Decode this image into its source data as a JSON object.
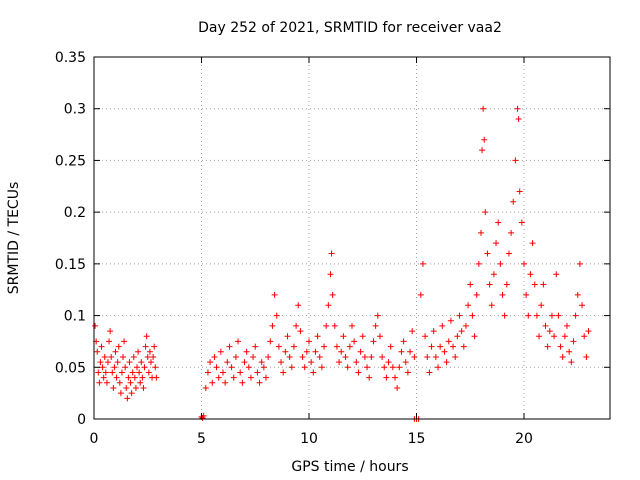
{
  "chart_data": {
    "type": "scatter",
    "title": "Day 252 of 2021, SRMTID for receiver vaa2",
    "xlabel": "GPS time / hours",
    "ylabel": "SRMTID / TECUs",
    "xlim": [
      0,
      24
    ],
    "ylim": [
      0,
      0.35
    ],
    "x_ticks": [
      0,
      5,
      10,
      15,
      20
    ],
    "x_tick_labels": [
      "0",
      "5",
      "10",
      "15",
      "20"
    ],
    "y_ticks": [
      0,
      0.05,
      0.1,
      0.15,
      0.2,
      0.25,
      0.3,
      0.35
    ],
    "y_tick_labels": [
      "0",
      "0.05",
      "0.1",
      "0.15",
      "0.2",
      "0.25",
      "0.3",
      "0.35"
    ],
    "grid": true,
    "marker": "plus",
    "color": "#ff0000",
    "series": [
      {
        "name": "vaa2",
        "points": [
          [
            0.05,
            0.09
          ],
          [
            0.1,
            0.075
          ],
          [
            0.15,
            0.065
          ],
          [
            0.2,
            0.045
          ],
          [
            0.25,
            0.035
          ],
          [
            0.3,
            0.055
          ],
          [
            0.35,
            0.07
          ],
          [
            0.4,
            0.05
          ],
          [
            0.45,
            0.04
          ],
          [
            0.5,
            0.06
          ],
          [
            0.55,
            0.045
          ],
          [
            0.6,
            0.035
          ],
          [
            0.65,
            0.055
          ],
          [
            0.7,
            0.075
          ],
          [
            0.75,
            0.085
          ],
          [
            0.8,
            0.06
          ],
          [
            0.85,
            0.045
          ],
          [
            0.9,
            0.03
          ],
          [
            0.95,
            0.05
          ],
          [
            1.0,
            0.065
          ],
          [
            1.05,
            0.04
          ],
          [
            1.1,
            0.055
          ],
          [
            1.15,
            0.07
          ],
          [
            1.2,
            0.035
          ],
          [
            1.25,
            0.025
          ],
          [
            1.3,
            0.045
          ],
          [
            1.35,
            0.06
          ],
          [
            1.4,
            0.075
          ],
          [
            1.45,
            0.05
          ],
          [
            1.5,
            0.03
          ],
          [
            1.55,
            0.02
          ],
          [
            1.6,
            0.04
          ],
          [
            1.65,
            0.055
          ],
          [
            1.7,
            0.035
          ],
          [
            1.75,
            0.025
          ],
          [
            1.8,
            0.045
          ],
          [
            1.85,
            0.06
          ],
          [
            1.9,
            0.04
          ],
          [
            1.95,
            0.03
          ],
          [
            2.0,
            0.05
          ],
          [
            2.05,
            0.065
          ],
          [
            2.1,
            0.045
          ],
          [
            2.15,
            0.035
          ],
          [
            2.2,
            0.055
          ],
          [
            2.25,
            0.04
          ],
          [
            2.3,
            0.03
          ],
          [
            2.35,
            0.05
          ],
          [
            2.4,
            0.07
          ],
          [
            2.45,
            0.08
          ],
          [
            2.5,
            0.06
          ],
          [
            2.55,
            0.045
          ],
          [
            2.6,
            0.065
          ],
          [
            2.65,
            0.055
          ],
          [
            2.7,
            0.04
          ],
          [
            2.75,
            0.06
          ],
          [
            2.8,
            0.07
          ],
          [
            2.85,
            0.05
          ],
          [
            2.9,
            0.04
          ],
          [
            5.0,
            0.002
          ],
          [
            5.05,
            0.001
          ],
          [
            5.1,
            0.003
          ],
          [
            5.2,
            0.03
          ],
          [
            5.3,
            0.045
          ],
          [
            5.4,
            0.055
          ],
          [
            5.5,
            0.035
          ],
          [
            5.6,
            0.06
          ],
          [
            5.7,
            0.05
          ],
          [
            5.8,
            0.04
          ],
          [
            5.9,
            0.065
          ],
          [
            6.0,
            0.045
          ],
          [
            6.1,
            0.035
          ],
          [
            6.2,
            0.055
          ],
          [
            6.3,
            0.07
          ],
          [
            6.4,
            0.05
          ],
          [
            6.5,
            0.04
          ],
          [
            6.6,
            0.06
          ],
          [
            6.7,
            0.075
          ],
          [
            6.8,
            0.045
          ],
          [
            6.9,
            0.035
          ],
          [
            7.0,
            0.055
          ],
          [
            7.1,
            0.065
          ],
          [
            7.2,
            0.05
          ],
          [
            7.3,
            0.04
          ],
          [
            7.4,
            0.06
          ],
          [
            7.5,
            0.07
          ],
          [
            7.6,
            0.045
          ],
          [
            7.7,
            0.035
          ],
          [
            7.8,
            0.055
          ],
          [
            7.9,
            0.05
          ],
          [
            8.0,
            0.04
          ],
          [
            8.1,
            0.06
          ],
          [
            8.2,
            0.075
          ],
          [
            8.3,
            0.09
          ],
          [
            8.4,
            0.12
          ],
          [
            8.5,
            0.1
          ],
          [
            8.6,
            0.07
          ],
          [
            8.7,
            0.055
          ],
          [
            8.8,
            0.045
          ],
          [
            8.9,
            0.065
          ],
          [
            9.0,
            0.08
          ],
          [
            9.1,
            0.06
          ],
          [
            9.2,
            0.05
          ],
          [
            9.3,
            0.07
          ],
          [
            9.4,
            0.09
          ],
          [
            9.5,
            0.11
          ],
          [
            9.6,
            0.085
          ],
          [
            9.7,
            0.06
          ],
          [
            9.8,
            0.05
          ],
          [
            9.9,
            0.065
          ],
          [
            10.0,
            0.075
          ],
          [
            10.1,
            0.055
          ],
          [
            10.2,
            0.045
          ],
          [
            10.3,
            0.065
          ],
          [
            10.4,
            0.08
          ],
          [
            10.5,
            0.06
          ],
          [
            10.6,
            0.05
          ],
          [
            10.7,
            0.07
          ],
          [
            10.8,
            0.09
          ],
          [
            10.9,
            0.11
          ],
          [
            11.0,
            0.14
          ],
          [
            11.05,
            0.16
          ],
          [
            11.1,
            0.12
          ],
          [
            11.2,
            0.09
          ],
          [
            11.3,
            0.07
          ],
          [
            11.4,
            0.055
          ],
          [
            11.5,
            0.065
          ],
          [
            11.6,
            0.08
          ],
          [
            11.7,
            0.06
          ],
          [
            11.8,
            0.05
          ],
          [
            11.9,
            0.07
          ],
          [
            12.0,
            0.09
          ],
          [
            12.1,
            0.075
          ],
          [
            12.2,
            0.055
          ],
          [
            12.3,
            0.045
          ],
          [
            12.4,
            0.065
          ],
          [
            12.5,
            0.08
          ],
          [
            12.6,
            0.06
          ],
          [
            12.7,
            0.05
          ],
          [
            12.8,
            0.04
          ],
          [
            12.9,
            0.06
          ],
          [
            13.0,
            0.075
          ],
          [
            13.1,
            0.09
          ],
          [
            13.2,
            0.1
          ],
          [
            13.3,
            0.08
          ],
          [
            13.4,
            0.06
          ],
          [
            13.5,
            0.05
          ],
          [
            13.6,
            0.04
          ],
          [
            13.7,
            0.055
          ],
          [
            13.8,
            0.07
          ],
          [
            13.9,
            0.05
          ],
          [
            14.0,
            0.04
          ],
          [
            14.1,
            0.03
          ],
          [
            14.2,
            0.05
          ],
          [
            14.3,
            0.065
          ],
          [
            14.4,
            0.075
          ],
          [
            14.5,
            0.055
          ],
          [
            14.6,
            0.045
          ],
          [
            14.7,
            0.065
          ],
          [
            14.8,
            0.085
          ],
          [
            14.9,
            0.06
          ],
          [
            14.9,
            0.0
          ],
          [
            15.0,
            0.0
          ],
          [
            15.1,
            0.0
          ],
          [
            15.2,
            0.12
          ],
          [
            15.3,
            0.15
          ],
          [
            15.4,
            0.08
          ],
          [
            15.5,
            0.06
          ],
          [
            15.6,
            0.045
          ],
          [
            15.7,
            0.07
          ],
          [
            15.8,
            0.085
          ],
          [
            15.9,
            0.06
          ],
          [
            16.0,
            0.05
          ],
          [
            16.1,
            0.07
          ],
          [
            16.2,
            0.09
          ],
          [
            16.3,
            0.065
          ],
          [
            16.4,
            0.055
          ],
          [
            16.5,
            0.075
          ],
          [
            16.6,
            0.095
          ],
          [
            16.7,
            0.07
          ],
          [
            16.8,
            0.06
          ],
          [
            16.9,
            0.08
          ],
          [
            17.0,
            0.1
          ],
          [
            17.1,
            0.085
          ],
          [
            17.2,
            0.07
          ],
          [
            17.3,
            0.09
          ],
          [
            17.4,
            0.11
          ],
          [
            17.5,
            0.13
          ],
          [
            17.6,
            0.1
          ],
          [
            17.7,
            0.08
          ],
          [
            17.8,
            0.12
          ],
          [
            17.9,
            0.15
          ],
          [
            18.0,
            0.18
          ],
          [
            18.05,
            0.26
          ],
          [
            18.1,
            0.3
          ],
          [
            18.15,
            0.27
          ],
          [
            18.2,
            0.2
          ],
          [
            18.3,
            0.16
          ],
          [
            18.4,
            0.13
          ],
          [
            18.5,
            0.11
          ],
          [
            18.6,
            0.14
          ],
          [
            18.7,
            0.17
          ],
          [
            18.8,
            0.19
          ],
          [
            18.9,
            0.15
          ],
          [
            19.0,
            0.12
          ],
          [
            19.1,
            0.1
          ],
          [
            19.2,
            0.13
          ],
          [
            19.3,
            0.16
          ],
          [
            19.4,
            0.18
          ],
          [
            19.5,
            0.21
          ],
          [
            19.6,
            0.25
          ],
          [
            19.7,
            0.3
          ],
          [
            19.75,
            0.29
          ],
          [
            19.8,
            0.22
          ],
          [
            19.9,
            0.19
          ],
          [
            20.0,
            0.15
          ],
          [
            20.1,
            0.12
          ],
          [
            20.2,
            0.1
          ],
          [
            20.3,
            0.14
          ],
          [
            20.4,
            0.17
          ],
          [
            20.5,
            0.13
          ],
          [
            20.6,
            0.1
          ],
          [
            20.7,
            0.08
          ],
          [
            20.8,
            0.11
          ],
          [
            20.9,
            0.13
          ],
          [
            21.0,
            0.09
          ],
          [
            21.1,
            0.07
          ],
          [
            21.2,
            0.085
          ],
          [
            21.3,
            0.1
          ],
          [
            21.4,
            0.08
          ],
          [
            21.5,
            0.14
          ],
          [
            21.6,
            0.1
          ],
          [
            21.7,
            0.07
          ],
          [
            21.8,
            0.06
          ],
          [
            21.9,
            0.08
          ],
          [
            22.0,
            0.09
          ],
          [
            22.1,
            0.065
          ],
          [
            22.2,
            0.055
          ],
          [
            22.3,
            0.075
          ],
          [
            22.4,
            0.1
          ],
          [
            22.5,
            0.12
          ],
          [
            22.6,
            0.15
          ],
          [
            22.7,
            0.11
          ],
          [
            22.8,
            0.08
          ],
          [
            22.9,
            0.06
          ],
          [
            23.0,
            0.085
          ]
        ]
      }
    ]
  }
}
